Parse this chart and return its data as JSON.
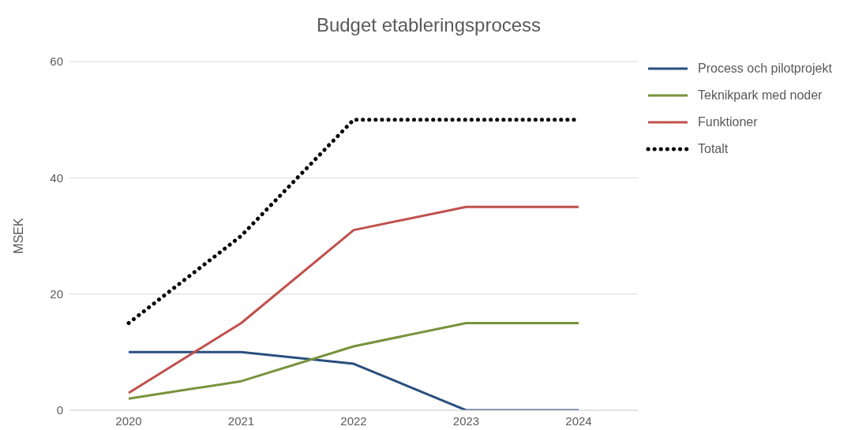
{
  "chart_data": {
    "type": "line",
    "title": "Budget etableringsprocess",
    "ylabel": "MSEK",
    "categories": [
      "2020",
      "2021",
      "2022",
      "2023",
      "2024"
    ],
    "series": [
      {
        "name": "Process och pilotprojekt",
        "color": "#2a4f7f",
        "values": [
          10,
          10,
          8,
          0,
          0
        ]
      },
      {
        "name": "Teknikpark med noder",
        "color": "#77933c",
        "values": [
          2,
          5,
          11,
          15,
          15
        ]
      },
      {
        "name": "Funktioner",
        "color": "#c0504d",
        "values": [
          3,
          15,
          31,
          35,
          35
        ]
      },
      {
        "name": "Totalt",
        "color": "#000000",
        "values": [
          15,
          30,
          50,
          50,
          50
        ],
        "line_style": "dotted"
      }
    ],
    "ylim": [
      0,
      60
    ],
    "yticks": [
      0,
      20,
      40,
      60
    ],
    "grid": "y",
    "legend": "right",
    "marker": "none",
    "line_style": "solid"
  }
}
